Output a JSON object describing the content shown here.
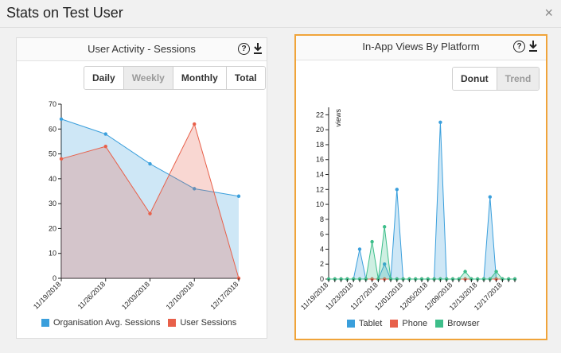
{
  "modal": {
    "title": "Stats on Test User",
    "close_symbol": "×"
  },
  "left_panel": {
    "title": "User Activity - Sessions",
    "help_symbol": "?",
    "buttons": [
      {
        "label": "Daily",
        "active": false
      },
      {
        "label": "Weekly",
        "active": true
      },
      {
        "label": "Monthly",
        "active": false
      },
      {
        "label": "Total",
        "active": false
      }
    ],
    "legend": [
      {
        "label": "Organisation Avg. Sessions",
        "color": "#3a9fdc"
      },
      {
        "label": "User Sessions",
        "color": "#e8604a"
      }
    ]
  },
  "right_panel": {
    "title": "In-App Views By Platform",
    "help_symbol": "?",
    "buttons": [
      {
        "label": "Donut",
        "active": false
      },
      {
        "label": "Trend",
        "active": true
      }
    ],
    "legend": [
      {
        "label": "Tablet",
        "color": "#3a9fdc"
      },
      {
        "label": "Phone",
        "color": "#e8604a"
      },
      {
        "label": "Browser",
        "color": "#3dbe8a"
      }
    ]
  },
  "chart_data": [
    {
      "type": "area",
      "categories": [
        "11/19/2018",
        "11/26/2018",
        "12/03/2018",
        "12/10/2018",
        "12/17/2018"
      ],
      "series": [
        {
          "name": "Organisation Avg. Sessions",
          "values": [
            64,
            58,
            46,
            36,
            33
          ],
          "color": "#3a9fdc"
        },
        {
          "name": "User Sessions",
          "values": [
            48,
            53,
            26,
            62,
            0
          ],
          "color": "#e8604a"
        }
      ],
      "ylim": [
        0,
        70
      ],
      "yticks": [
        0,
        10,
        20,
        30,
        40,
        50,
        60,
        70
      ],
      "xlabel": "",
      "ylabel": ""
    },
    {
      "type": "area",
      "x_tick_labels": [
        "11/19/2018",
        "11/23/2018",
        "11/27/2018",
        "12/01/2018",
        "12/05/2018",
        "12/09/2018",
        "12/13/2018",
        "12/17/2018"
      ],
      "x_count": 31,
      "series": [
        {
          "name": "Tablet",
          "color": "#3a9fdc",
          "values": [
            0,
            0,
            0,
            0,
            0,
            4,
            0,
            0,
            0,
            2,
            0,
            12,
            0,
            0,
            0,
            0,
            0,
            0,
            21,
            0,
            0,
            0,
            0,
            0,
            0,
            0,
            11,
            0,
            0,
            0,
            0
          ]
        },
        {
          "name": "Phone",
          "color": "#e8604a",
          "values": [
            0,
            0,
            0,
            0,
            0,
            0,
            0,
            0,
            0,
            0,
            0,
            0,
            0,
            0,
            0,
            0,
            0,
            0,
            0,
            0,
            0,
            0,
            0,
            0,
            0,
            0,
            0,
            0,
            0,
            0,
            0
          ]
        },
        {
          "name": "Browser",
          "color": "#3dbe8a",
          "values": [
            0,
            0,
            0,
            0,
            0,
            0,
            0,
            5,
            0,
            7,
            0,
            0,
            0,
            0,
            0,
            0,
            0,
            0,
            0,
            0,
            0,
            0,
            1,
            0,
            0,
            0,
            0,
            1,
            0,
            0,
            0
          ]
        }
      ],
      "ylim": [
        0,
        23
      ],
      "yticks": [
        0,
        2,
        4,
        6,
        8,
        10,
        12,
        14,
        16,
        18,
        20,
        22
      ],
      "ylabel": "views",
      "xlabel": ""
    }
  ]
}
